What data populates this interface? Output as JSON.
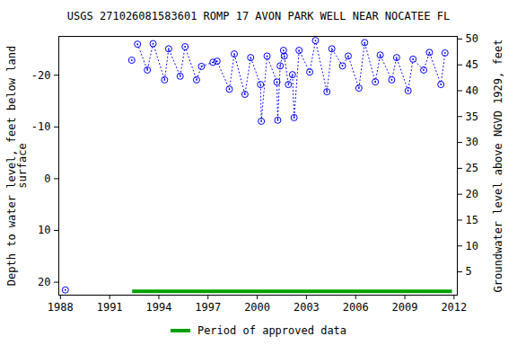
{
  "chart_data": {
    "type": "line",
    "title": "USGS 271026081583601 ROMP 17 AVON PARK WELL NEAR NOCATEE FL",
    "ylabel": "Depth to water level, feet below land surface",
    "y2label": "Groundwater level above NGVD 1929, feet",
    "marker": "circle",
    "line_style": "dotted",
    "color": "#0000ff",
    "x": [
      1988.3,
      1992.35,
      1992.7,
      1993.3,
      1993.65,
      1994.35,
      1994.6,
      1995.3,
      1995.6,
      1996.3,
      1996.6,
      1997.3,
      1997.55,
      1998.3,
      1998.6,
      1999.25,
      1999.6,
      2000.2,
      2000.25,
      2000.6,
      2001.2,
      2001.25,
      2001.4,
      2001.6,
      2001.65,
      2001.9,
      2002.15,
      2002.25,
      2002.55,
      2003.2,
      2003.55,
      2004.25,
      2004.55,
      2005.2,
      2005.55,
      2006.2,
      2006.55,
      2007.2,
      2007.5,
      2008.2,
      2008.5,
      2009.2,
      2009.5,
      2010.15,
      2010.5,
      2011.2,
      2011.45
    ],
    "values": [
      21.5,
      -22.9,
      -26,
      -21,
      -26.1,
      -19.1,
      -25.1,
      -19.8,
      -25.5,
      -19.1,
      -21.7,
      -22.5,
      -22.7,
      -17.3,
      -24.1,
      -16.3,
      -23.4,
      -18.2,
      -11.1,
      -23.7,
      -18.7,
      -11.3,
      -21.8,
      -24.8,
      -23.7,
      -18.2,
      -20.1,
      -11.8,
      -24.8,
      -20.6,
      -26.7,
      -16.8,
      -25.1,
      -21.8,
      -23.7,
      -17.5,
      -26.3,
      -18.7,
      -23.9,
      -19.1,
      -23.4,
      -17,
      -23.1,
      -21,
      -24.4,
      -18.2,
      -24.3
    ],
    "xlim": [
      1987.9,
      2012.2
    ],
    "xticks": [
      1988,
      1991,
      1994,
      1997,
      2000,
      2003,
      2006,
      2009,
      2012
    ],
    "ylim": [
      22.5,
      -27.5
    ],
    "yticks": [
      -20,
      -10,
      0,
      10,
      20
    ],
    "y2lim": [
      0.5,
      50.5
    ],
    "y2ticks": [
      5,
      10,
      15,
      20,
      25,
      30,
      35,
      40,
      45,
      50
    ],
    "approved_period": {
      "name": "Period of approved data",
      "color": "#00a000",
      "x": [
        1992.4,
        2011.9
      ]
    },
    "legend": "bottom"
  }
}
